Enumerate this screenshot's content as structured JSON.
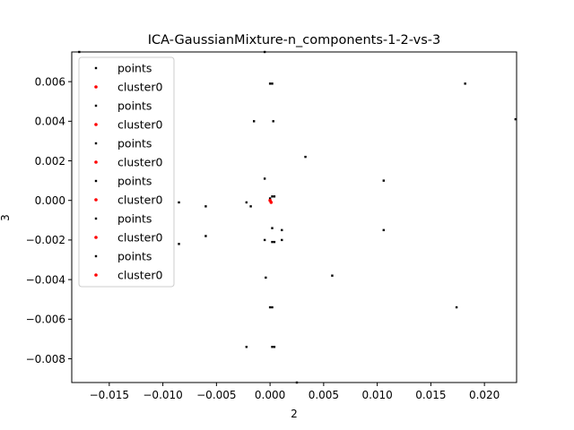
{
  "chart_data": {
    "type": "scatter",
    "title": "ICA-GaussianMixture-n_components-1-2-vs-3",
    "xlabel": "2",
    "ylabel": "3",
    "xlim": [
      -0.0185,
      0.023
    ],
    "ylim": [
      -0.0092,
      0.0075
    ],
    "x_ticks": [
      -0.015,
      -0.01,
      -0.005,
      0.0,
      0.005,
      0.01,
      0.015,
      0.02
    ],
    "x_tick_labels": [
      "−0.015",
      "−0.010",
      "−0.005",
      "0.000",
      "0.005",
      "0.010",
      "0.015",
      "0.020"
    ],
    "y_ticks": [
      -0.008,
      -0.006,
      -0.004,
      -0.002,
      0.0,
      0.002,
      0.004,
      0.006
    ],
    "y_tick_labels": [
      "−0.008",
      "−0.006",
      "−0.004",
      "−0.002",
      "0.000",
      "0.002",
      "0.004",
      "0.006"
    ],
    "grid": false,
    "legend_position": "top-left",
    "legend": [
      "points",
      "cluster0",
      "points",
      "cluster0",
      "points",
      "cluster0",
      "points",
      "cluster0",
      "points",
      "cluster0",
      "points",
      "cluster0"
    ],
    "series": [
      {
        "name": "points",
        "color": "#000000",
        "points": [
          {
            "x": -0.0178,
            "y": 0.0075
          },
          {
            "x": -0.0005,
            "y": 0.0075
          },
          {
            "x": 0.0,
            "y": 0.0059
          },
          {
            "x": 0.0002,
            "y": 0.0059
          },
          {
            "x": 0.0182,
            "y": 0.0059
          },
          {
            "x": 0.0229,
            "y": 0.0041
          },
          {
            "x": -0.0015,
            "y": 0.004
          },
          {
            "x": 0.0003,
            "y": 0.004
          },
          {
            "x": 0.0033,
            "y": 0.0022
          },
          {
            "x": -0.0005,
            "y": 0.0011
          },
          {
            "x": 0.0106,
            "y": 0.001
          },
          {
            "x": 0.0,
            "y": 0.0001
          },
          {
            "x": 0.0002,
            "y": 0.0002
          },
          {
            "x": 0.0004,
            "y": 0.0002
          },
          {
            "x": -0.0085,
            "y": -0.0001
          },
          {
            "x": -0.0022,
            "y": -0.0001
          },
          {
            "x": -0.006,
            "y": -0.0003
          },
          {
            "x": -0.0018,
            "y": -0.0003
          },
          {
            "x": 0.0002,
            "y": -0.0014
          },
          {
            "x": 0.0011,
            "y": -0.0015
          },
          {
            "x": 0.0106,
            "y": -0.0015
          },
          {
            "x": -0.006,
            "y": -0.0018
          },
          {
            "x": -0.0005,
            "y": -0.002
          },
          {
            "x": 0.0011,
            "y": -0.002
          },
          {
            "x": 0.0002,
            "y": -0.0021
          },
          {
            "x": 0.0004,
            "y": -0.0021
          },
          {
            "x": -0.0085,
            "y": -0.0022
          },
          {
            "x": -0.0004,
            "y": -0.0039
          },
          {
            "x": 0.0058,
            "y": -0.0038
          },
          {
            "x": 0.0,
            "y": -0.0054
          },
          {
            "x": 0.0002,
            "y": -0.0054
          },
          {
            "x": 0.0174,
            "y": -0.0054
          },
          {
            "x": -0.0022,
            "y": -0.0074
          },
          {
            "x": 0.0002,
            "y": -0.0074
          },
          {
            "x": 0.0004,
            "y": -0.0074
          },
          {
            "x": 0.0025,
            "y": -0.0092
          }
        ]
      },
      {
        "name": "cluster0",
        "color": "#ff0000",
        "points": [
          {
            "x": 0.0,
            "y": 0.0
          },
          {
            "x": 0.0001,
            "y": -0.0001
          }
        ]
      }
    ]
  }
}
